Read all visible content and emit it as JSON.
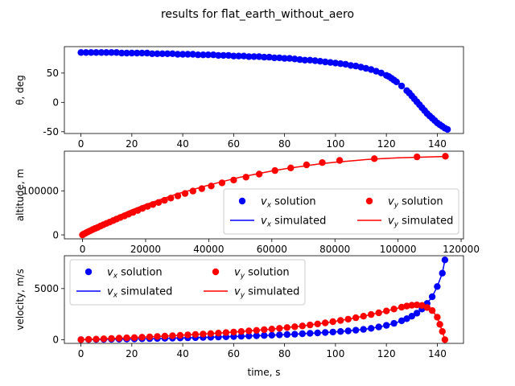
{
  "chart_data": {
    "suptitle": "results for flat_earth_without_aero",
    "panels": [
      {
        "id": "theta",
        "type": "scatter",
        "xlabel": "",
        "ylabel": "θ, deg",
        "xlim": [
          -6.5,
          150.3
        ],
        "ylim": [
          -53,
          95
        ],
        "xticks": [
          0,
          20,
          40,
          60,
          80,
          100,
          120,
          140
        ],
        "yticks": [
          -50,
          0,
          50
        ],
        "series": [
          {
            "name": "",
            "color": "#0000ff",
            "x": [
              0,
              2,
              4,
              6,
              8,
              10,
              12,
              14,
              16,
              18,
              20,
              22,
              24,
              26,
              28,
              30,
              32,
              34,
              36,
              38,
              40,
              42,
              44,
              46,
              48,
              50,
              52,
              54,
              56,
              58,
              60,
              62,
              64,
              66,
              68,
              70,
              72,
              74,
              76,
              78,
              80,
              82,
              84,
              86,
              88,
              90,
              92,
              94,
              96,
              98,
              100,
              102,
              104,
              106,
              108,
              110,
              112,
              114,
              116,
              118,
              120,
              121,
              122,
              123,
              124,
              126,
              128,
              129,
              130,
              131,
              132,
              133,
              134,
              135,
              136,
              137,
              138,
              139,
              140,
              141,
              142,
              143,
              144
            ],
            "y": [
              85,
              85,
              85,
              85,
              85,
              85,
              85,
              85,
              84,
              84,
              84,
              84,
              84,
              84,
              83,
              83,
              83,
              83,
              83,
              82,
              82,
              82,
              82,
              81,
              81,
              81,
              81,
              80,
              80,
              80,
              79,
              79,
              79,
              78,
              78,
              78,
              77,
              77,
              76,
              76,
              75,
              75,
              74,
              73,
              72,
              72,
              71,
              70,
              69,
              68,
              67,
              66,
              65,
              63,
              62,
              60,
              58,
              56,
              53,
              50,
              46,
              44,
              41,
              38,
              35,
              28,
              20,
              16,
              11,
              6,
              1,
              -4,
              -9,
              -14,
              -19,
              -23,
              -27,
              -31,
              -35,
              -38,
              -41,
              -44,
              -46
            ]
          }
        ]
      },
      {
        "id": "trajectory",
        "type": "scatter",
        "xlabel": "",
        "ylabel": "altitude, m",
        "xlim": [
          -5750,
          120750
        ],
        "ylim": [
          -9000,
          190000
        ],
        "xticks": [
          0,
          20000,
          40000,
          60000,
          80000,
          100000,
          120000
        ],
        "yticks": [
          0,
          100000
        ],
        "legend": {
          "placement": "lower-right",
          "entries": [
            {
              "kind": "marker",
              "color": "#0000ff",
              "sym": "v",
              "sub": "x",
              "word": "solution"
            },
            {
              "kind": "marker",
              "color": "#ff0000",
              "sym": "v",
              "sub": "y",
              "word": "solution"
            },
            {
              "kind": "line",
              "color": "#0000ff",
              "sym": "v",
              "sub": "x",
              "word": "simulated"
            },
            {
              "kind": "line",
              "color": "#ff0000",
              "sym": "v",
              "sub": "y",
              "word": "simulated"
            }
          ]
        },
        "series": [
          {
            "name": "simulated",
            "color": "#ff0000",
            "style": "line",
            "x": [
              0,
              2000,
              5000,
              10000,
              15000,
              20000,
              25000,
              30000,
              35000,
              40000,
              45000,
              50000,
              55000,
              60000,
              65000,
              70000,
              75000,
              80000,
              85000,
              90000,
              95000,
              100000,
              105000,
              110000,
              115000
            ],
            "y": [
              0,
              7000,
              20000,
              39000,
              55000,
              69000,
              81000,
              93000,
              103000,
              113000,
              122000,
              131000,
              138000,
              145000,
              151000,
              156000,
              161000,
              165000,
              168000,
              171000,
              173000,
              175000,
              176000,
              177000,
              178000
            ]
          },
          {
            "name": "solution",
            "color": "#ff0000",
            "style": "marker",
            "x": [
              0,
              300,
              700,
              1200,
              1800,
              2500,
              3200,
              4000,
              4800,
              5700,
              6600,
              7600,
              8600,
              9700,
              10800,
              12000,
              13300,
              14600,
              16000,
              17500,
              19000,
              20600,
              22300,
              24100,
              26000,
              28000,
              30200,
              32500,
              35000,
              37800,
              40800,
              44200,
              47900,
              51800,
              56000,
              61000,
              66000,
              71000,
              76000,
              81500,
              92500,
              106000,
              115000
            ],
            "y": [
              0,
              1500,
              3000,
              5000,
              7000,
              9500,
              12000,
              14500,
              17000,
              20000,
              23000,
              26000,
              29000,
              32500,
              36000,
              39500,
              43000,
              47000,
              51000,
              55500,
              60000,
              64500,
              69000,
              73500,
              78500,
              83500,
              88500,
              94000,
              99500,
              105000,
              111000,
              118000,
              124500,
              131000,
              138000,
              146000,
              152000,
              159000,
              164000,
              169000,
              173000,
              177000,
              178500
            ]
          }
        ]
      },
      {
        "id": "velocity",
        "type": "scatter",
        "xlabel": "time, s",
        "ylabel": "velocity, m/s",
        "xlim": [
          -6.5,
          150.3
        ],
        "ylim": [
          -360,
          8210
        ],
        "xticks": [
          0,
          20,
          40,
          60,
          80,
          100,
          120,
          140
        ],
        "yticks": [
          0,
          5000
        ],
        "legend": {
          "placement": "upper-left",
          "entries": [
            {
              "kind": "marker",
              "color": "#0000ff",
              "sym": "v",
              "sub": "x",
              "word": "solution"
            },
            {
              "kind": "line",
              "color": "#0000ff",
              "sym": "v",
              "sub": "x",
              "word": "simulated"
            },
            {
              "kind": "marker",
              "color": "#ff0000",
              "sym": "v",
              "sub": "y",
              "word": "solution"
            },
            {
              "kind": "line",
              "color": "#ff0000",
              "sym": "v",
              "sub": "y",
              "word": "simulated"
            }
          ]
        },
        "series": [
          {
            "name": "vx",
            "color": "#0000ff",
            "x": [
              0,
              3,
              6,
              9,
              12,
              15,
              18,
              21,
              24,
              27,
              30,
              33,
              36,
              39,
              42,
              45,
              48,
              51,
              54,
              57,
              60,
              63,
              66,
              69,
              72,
              75,
              78,
              81,
              84,
              87,
              90,
              93,
              96,
              99,
              102,
              105,
              108,
              111,
              114,
              117,
              120,
              123,
              126,
              128,
              130,
              132,
              134,
              136,
              138,
              140,
              142,
              143
            ],
            "y": [
              0,
              10,
              20,
              30,
              40,
              50,
              60,
              75,
              90,
              105,
              120,
              135,
              150,
              165,
              180,
              200,
              220,
              240,
              260,
              285,
              310,
              335,
              360,
              385,
              410,
              440,
              470,
              505,
              540,
              580,
              620,
              660,
              705,
              750,
              800,
              860,
              930,
              1010,
              1110,
              1240,
              1400,
              1600,
              1850,
              2050,
              2300,
              2600,
              3000,
              3550,
              4200,
              5200,
              6500,
              7800
            ]
          },
          {
            "name": "vy",
            "color": "#ff0000",
            "x": [
              0,
              3,
              6,
              9,
              12,
              15,
              18,
              21,
              24,
              27,
              30,
              33,
              36,
              39,
              42,
              45,
              48,
              51,
              54,
              57,
              60,
              63,
              66,
              69,
              72,
              75,
              78,
              81,
              84,
              87,
              90,
              93,
              96,
              99,
              102,
              105,
              108,
              111,
              114,
              117,
              120,
              123,
              126,
              128,
              130,
              132,
              134,
              136,
              138,
              140,
              141,
              142,
              143
            ],
            "y": [
              0,
              30,
              60,
              90,
              120,
              150,
              180,
              210,
              245,
              280,
              315,
              350,
              390,
              430,
              470,
              510,
              555,
              600,
              645,
              695,
              745,
              800,
              855,
              915,
              975,
              1040,
              1110,
              1185,
              1265,
              1350,
              1440,
              1540,
              1645,
              1760,
              1880,
              2010,
              2150,
              2300,
              2460,
              2630,
              2810,
              3000,
              3180,
              3290,
              3370,
              3400,
              3350,
              3150,
              2850,
              2200,
              1500,
              800,
              0
            ]
          }
        ]
      }
    ]
  }
}
